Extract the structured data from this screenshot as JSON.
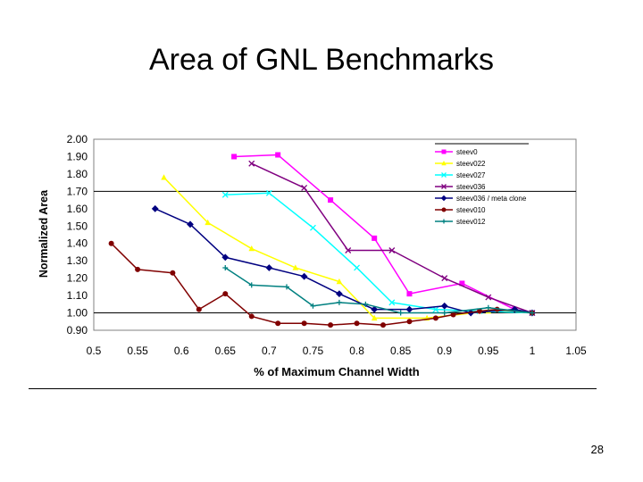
{
  "slide": {
    "title": "Area of GNL Benchmarks",
    "page_number": "28"
  },
  "chart_data": {
    "type": "line",
    "title": "Area of GNL Benchmarks",
    "xlabel": "% of Maximum Channel Width",
    "ylabel": "Normalized Area",
    "xlim": [
      0.5,
      1.05
    ],
    "ylim": [
      0.9,
      2.0
    ],
    "xticks": [
      0.5,
      0.55,
      0.6,
      0.65,
      0.7,
      0.75,
      0.8,
      0.85,
      0.9,
      0.95,
      1,
      1.05
    ],
    "xtick_labels": [
      "0.5",
      "0.55",
      "0.6",
      "0.65",
      "0.7",
      "0.75",
      "0.8",
      "0.85",
      "0.9",
      "0.95",
      "1",
      "1.05"
    ],
    "yticks": [
      0.9,
      1.0,
      1.1,
      1.2,
      1.3,
      1.4,
      1.5,
      1.6,
      1.7,
      1.8,
      1.9,
      2.0
    ],
    "ytick_labels": [
      "0.90",
      "1.00",
      "1.10",
      "1.20",
      "1.30",
      "1.40",
      "1.50",
      "1.60",
      "1.70",
      "1.80",
      "1.90",
      "2.00"
    ],
    "reference_lines": [
      1.0,
      1.7
    ],
    "legend_position": "top-right",
    "series": [
      {
        "name": "steev0",
        "color": "#ff00ff",
        "marker": "square",
        "x": [
          0.66,
          0.71,
          0.77,
          0.82,
          0.86,
          0.92,
          0.98,
          1.0
        ],
        "y": [
          1.9,
          1.91,
          1.65,
          1.43,
          1.11,
          1.17,
          1.02,
          1.0
        ]
      },
      {
        "name": "steev022",
        "color": "#ffff00",
        "marker": "triangle",
        "x": [
          0.58,
          0.63,
          0.68,
          0.73,
          0.78,
          0.82,
          0.88,
          0.95,
          1.0
        ],
        "y": [
          1.78,
          1.52,
          1.37,
          1.26,
          1.18,
          0.97,
          0.97,
          1.01,
          1.0
        ]
      },
      {
        "name": "steev027",
        "color": "#00ffff",
        "marker": "x",
        "x": [
          0.65,
          0.7,
          0.75,
          0.8,
          0.84,
          0.89,
          0.94,
          1.0
        ],
        "y": [
          1.68,
          1.69,
          1.49,
          1.26,
          1.06,
          1.02,
          1.01,
          1.0
        ]
      },
      {
        "name": "steev036",
        "color": "#800080",
        "marker": "x",
        "x": [
          0.68,
          0.74,
          0.79,
          0.84,
          0.9,
          0.95,
          1.0
        ],
        "y": [
          1.86,
          1.72,
          1.36,
          1.36,
          1.2,
          1.09,
          1.0
        ]
      },
      {
        "name": "steev036 / meta clone",
        "color": "#000080",
        "marker": "diamond",
        "x": [
          0.57,
          0.61,
          0.65,
          0.7,
          0.74,
          0.78,
          0.82,
          0.86,
          0.9,
          0.93,
          0.98,
          1.0
        ],
        "y": [
          1.6,
          1.51,
          1.32,
          1.26,
          1.21,
          1.11,
          1.02,
          1.02,
          1.04,
          1.0,
          1.02,
          1.0
        ]
      },
      {
        "name": "steev010",
        "color": "#800000",
        "marker": "circle",
        "x": [
          0.52,
          0.55,
          0.59,
          0.62,
          0.65,
          0.68,
          0.71,
          0.74,
          0.77,
          0.8,
          0.83,
          0.86,
          0.89,
          0.91,
          0.94,
          0.96,
          1.0
        ],
        "y": [
          1.4,
          1.25,
          1.23,
          1.02,
          1.11,
          0.98,
          0.94,
          0.94,
          0.93,
          0.94,
          0.93,
          0.95,
          0.97,
          0.99,
          1.01,
          1.02,
          1.0
        ]
      },
      {
        "name": "steev012",
        "color": "#008080",
        "marker": "plus",
        "x": [
          0.65,
          0.68,
          0.72,
          0.75,
          0.78,
          0.81,
          0.85,
          0.9,
          0.95,
          1.0
        ],
        "y": [
          1.26,
          1.16,
          1.15,
          1.04,
          1.06,
          1.05,
          1.0,
          1.0,
          1.03,
          1.0
        ]
      }
    ]
  }
}
